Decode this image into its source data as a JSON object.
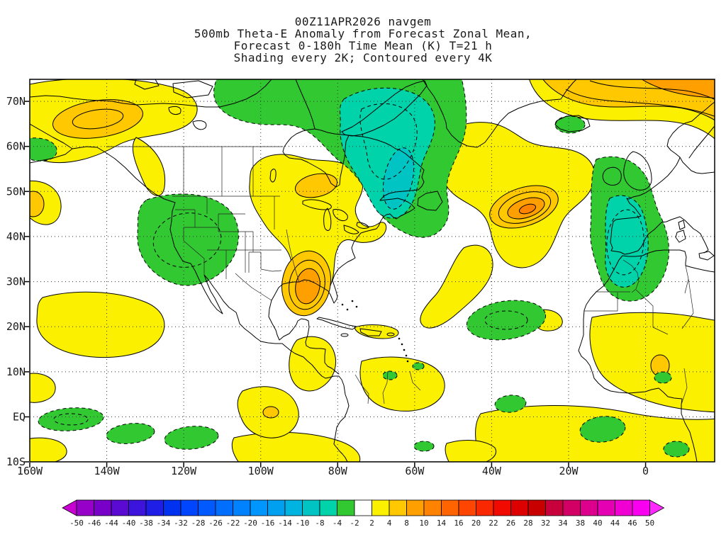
{
  "title": {
    "line1": "00Z11APR2026 navgem",
    "line2": "500mb Theta-E Anomaly from Forecast Zonal Mean,",
    "line3": "Forecast 0-180h Time Mean (K) T=21 h",
    "line4": "Shading every 2K; Contoured every 4K"
  },
  "axes": {
    "y_labels": [
      "70N",
      "60N",
      "50N",
      "40N",
      "30N",
      "20N",
      "10N",
      "EQ",
      "10S"
    ],
    "x_labels": [
      "160W",
      "140W",
      "120W",
      "100W",
      "80W",
      "60W",
      "40W",
      "20W",
      "0"
    ]
  },
  "colorbar": {
    "tick_labels": [
      "-50",
      "-46",
      "-44",
      "-40",
      "-38",
      "-34",
      "-32",
      "-28",
      "-26",
      "-22",
      "-20",
      "-16",
      "-14",
      "-10",
      "-8",
      "-4",
      "-2",
      "2",
      "4",
      "8",
      "10",
      "14",
      "16",
      "20",
      "22",
      "26",
      "28",
      "32",
      "34",
      "38",
      "40",
      "44",
      "46",
      "50"
    ],
    "colors": [
      "#c800d2",
      "#9600c8",
      "#7800c8",
      "#5a0ad2",
      "#3c14dc",
      "#1e1ee6",
      "#0032f0",
      "#0046ff",
      "#005aff",
      "#006eff",
      "#0082ff",
      "#0096ff",
      "#00a0f0",
      "#00b4e1",
      "#00c3c3",
      "#00d2aa",
      "#32c832",
      "#ffffff",
      "#faf000",
      "#ffc800",
      "#ffa000",
      "#ff8200",
      "#ff6400",
      "#ff4600",
      "#fa2800",
      "#f00a00",
      "#dc0000",
      "#c80000",
      "#c8003c",
      "#d20064",
      "#dc008c",
      "#e600b4",
      "#f000d2",
      "#fa00f0",
      "#ff28ff"
    ]
  },
  "chart_data": {
    "type": "heatmap",
    "subtype": "filled-contour-map",
    "title": "00Z11APR2026 navgem — 500mb Theta-E Anomaly from Forecast Zonal Mean, Forecast 0-180h Time Mean (K) T=21 h",
    "shading_note": "Shading every 2K; Contoured every 4K",
    "units": "K",
    "projection": "latlon",
    "lon_range_deg": [
      -160,
      18
    ],
    "lat_range_deg": [
      -10,
      75
    ],
    "x_tick_labels": [
      "160W",
      "140W",
      "120W",
      "100W",
      "80W",
      "60W",
      "40W",
      "20W",
      "0"
    ],
    "y_tick_labels": [
      "70N",
      "60N",
      "50N",
      "40N",
      "30N",
      "20N",
      "10N",
      "EQ",
      "10S"
    ],
    "grid": "dotted every 10 deg lat / 20 deg lon",
    "colorbar_levels": [
      -50,
      -46,
      -44,
      -40,
      -38,
      -34,
      -32,
      -28,
      -26,
      -22,
      -20,
      -16,
      -14,
      -10,
      -8,
      -4,
      -2,
      2,
      4,
      8,
      10,
      14,
      16,
      20,
      22,
      26,
      28,
      32,
      34,
      38,
      40,
      44,
      46,
      50
    ],
    "colorbar_position": "bottom, horizontal, arrow ends",
    "shade_color_map": {
      "-4_-2": "#32c832",
      "-8_-4": "#00d2aa",
      "-10_-8": "#00c3c3",
      "2_4": "#faf000",
      "4_8": "#ffc800",
      "8_10": "#ffa000",
      "10_14": "#ff8200"
    },
    "features": [
      {
        "sign": "negative",
        "region": "Eastern Canada / Baffin / Davis Strait / Labrador Sea",
        "approx_center": "62N 70W",
        "approx_extreme_K": -10
      },
      {
        "sign": "positive",
        "region": "Alaska / Bering / Yukon",
        "approx_center": "63N 148W",
        "approx_extreme_K": 8
      },
      {
        "sign": "positive",
        "region": "Central US Plains (Kansas-Texas) extending to Prairies and Great Lakes",
        "approx_center": "38N 98W",
        "approx_extreme_K": 10
      },
      {
        "sign": "negative",
        "region": "Western US Great Basin",
        "approx_center": "40N 113W",
        "approx_extreme_K": -6
      },
      {
        "sign": "positive",
        "region": "Central North Atlantic with SW tongue toward 25N 55W",
        "approx_center": "48N 32W",
        "approx_extreme_K": 12
      },
      {
        "sign": "negative",
        "region": "Northeast Atlantic / Iberia / Morocco",
        "approx_center": "40N 12W",
        "approx_extreme_K": -8
      },
      {
        "sign": "positive",
        "region": "Far northeast corner (Norwegian Sea / Scandinavia)",
        "approx_center": "73N 5E",
        "approx_extreme_K": 12
      },
      {
        "sign": "negative",
        "region": "Tropical central Atlantic",
        "approx_center": "20N 45W",
        "approx_extreme_K": -4
      },
      {
        "sign": "positive",
        "region": "Broad weak tropical band (Caribbean, tropical Atlantic, Africa)",
        "approx_center": "5N-15N",
        "approx_extreme_K": 4
      },
      {
        "sign": "negative",
        "region": "Scattered equatorial eastern Pacific patches",
        "approx_center": "EQ 150W-120W",
        "approx_extreme_K": -4
      }
    ]
  }
}
